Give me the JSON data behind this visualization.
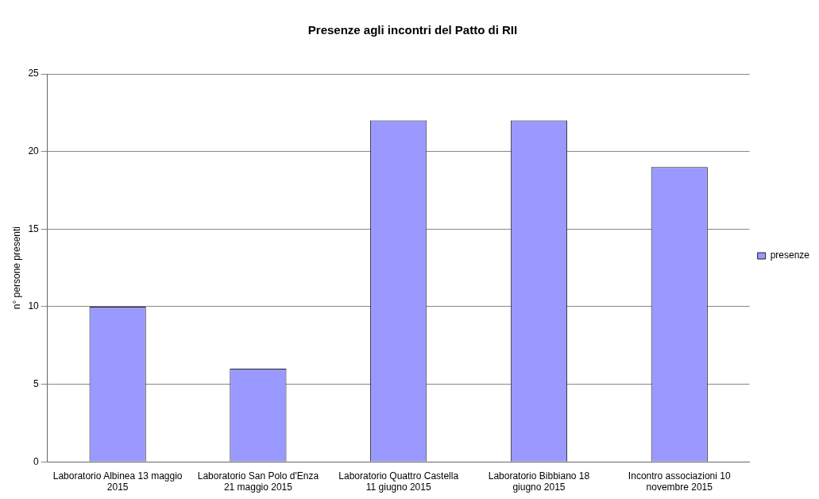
{
  "chart_data": {
    "type": "bar",
    "title": "Presenze agli incontri del Patto di RII",
    "ylabel": "n° persone presenti",
    "categories": [
      "Laboratorio Albinea 13 maggio 2015",
      "Laboratorio San Polo d'Enza 21 maggio 2015",
      "Laboratorio Quattro Castella 11 giugno 2015",
      "Laboratorio Bibbiano 18 giugno 2015",
      "Incontro associazioni 10 novembre 2015"
    ],
    "series": [
      {
        "name": "presenze",
        "color": "#9999ff",
        "values": [
          10,
          6,
          22,
          22,
          19
        ]
      }
    ],
    "ylim": [
      0,
      25
    ],
    "yticks": [
      0,
      5,
      10,
      15,
      20,
      25
    ],
    "grid": "y",
    "legend": "right"
  }
}
